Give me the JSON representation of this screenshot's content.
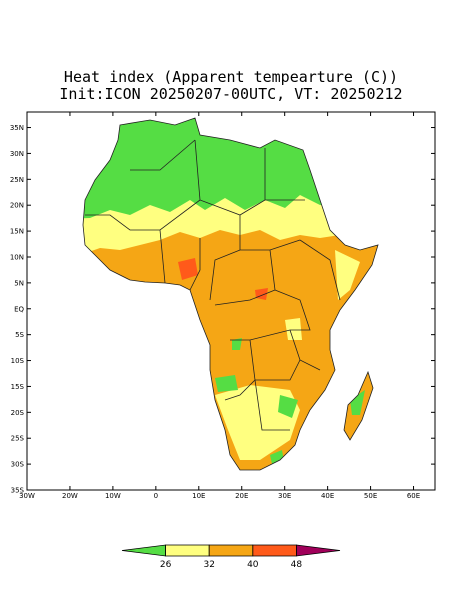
{
  "map": {
    "title": "Heat index (Apparent tempearture (C))",
    "subtitle": "Init:ICON 20250207-00UTC, VT: 20250212",
    "lonlim": [
      -30,
      65
    ],
    "latlim": [
      -35,
      38
    ],
    "lat_ticks": [
      {
        "value": 35,
        "label": "35N"
      },
      {
        "value": 30,
        "label": "30N"
      },
      {
        "value": 25,
        "label": "25N"
      },
      {
        "value": 20,
        "label": "20N"
      },
      {
        "value": 15,
        "label": "15N"
      },
      {
        "value": 10,
        "label": "10N"
      },
      {
        "value": 5,
        "label": "5N"
      },
      {
        "value": 0,
        "label": "EQ"
      },
      {
        "value": -5,
        "label": "5S"
      },
      {
        "value": -10,
        "label": "10S"
      },
      {
        "value": -15,
        "label": "15S"
      },
      {
        "value": -20,
        "label": "20S"
      },
      {
        "value": -25,
        "label": "25S"
      },
      {
        "value": -30,
        "label": "30S"
      },
      {
        "value": -35,
        "label": "35S"
      }
    ],
    "lon_ticks": [
      {
        "value": -30,
        "label": "30W"
      },
      {
        "value": -20,
        "label": "20W"
      },
      {
        "value": -10,
        "label": "10W"
      },
      0,
      {
        "value": 10,
        "label": "10E"
      },
      {
        "value": 20,
        "label": "20E"
      },
      {
        "value": 30,
        "label": "30E"
      },
      {
        "value": 40,
        "label": "40E"
      },
      {
        "value": 50,
        "label": "50E"
      },
      {
        "value": 60,
        "label": "60E"
      }
    ],
    "colorbar": {
      "levels": [
        26,
        32,
        40,
        48
      ],
      "colors": [
        "#55dd44",
        "#ffff80",
        "#f5a615",
        "#ff5a1a",
        "#a0005a"
      ]
    }
  }
}
